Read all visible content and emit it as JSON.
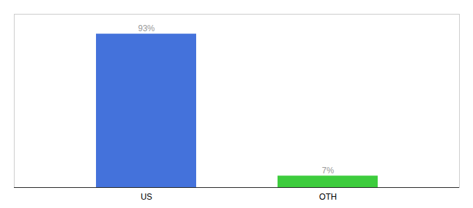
{
  "chart_data": {
    "type": "bar",
    "categories": [
      "US",
      "OTH"
    ],
    "values": [
      93,
      7
    ],
    "value_labels": [
      "93%",
      "7%"
    ],
    "colors": [
      "#4472db",
      "#3dcc3d"
    ],
    "ylim": [
      0,
      105
    ],
    "data_labels": true,
    "tick_labels": "x",
    "grid": false
  }
}
